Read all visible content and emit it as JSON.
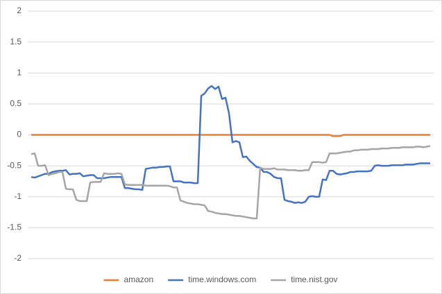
{
  "chart_data": {
    "type": "line",
    "ylim": [
      -2,
      2
    ],
    "yticks": [
      2,
      1.5,
      1,
      0.5,
      0,
      -0.5,
      -1,
      -1.5,
      -2
    ],
    "grid": true,
    "legend": "bottom",
    "series": [
      {
        "name": "amazon",
        "color": "#ed7d31",
        "values": [
          0,
          0,
          0,
          0,
          0,
          0,
          0,
          0,
          0,
          0,
          0,
          0,
          0,
          0,
          0,
          0,
          0,
          0,
          0,
          0,
          0,
          0,
          0,
          0,
          0,
          0,
          0,
          0,
          0,
          0,
          0,
          0,
          0,
          0,
          0,
          0,
          0,
          0,
          0,
          0,
          0,
          0,
          0,
          0,
          0,
          0,
          0,
          0,
          0,
          0,
          0,
          0,
          0,
          0,
          0,
          0,
          0,
          0,
          0,
          0,
          0,
          0,
          0,
          0,
          0,
          0,
          0,
          0,
          0,
          0,
          0,
          0,
          0,
          0,
          0,
          0,
          0,
          0,
          0,
          0,
          0,
          0,
          0,
          0,
          0,
          0,
          0,
          -0.02,
          -0.02,
          -0.02,
          0,
          0,
          0,
          0,
          0,
          0,
          0,
          0,
          0,
          0,
          0,
          0,
          0,
          0,
          0,
          0,
          0,
          0,
          0,
          0,
          0,
          0,
          0,
          0,
          0,
          0
        ]
      },
      {
        "name": "time.windows.com",
        "color": "#4472c4",
        "values": [
          -0.68,
          -0.69,
          -0.67,
          -0.65,
          -0.63,
          -0.63,
          -0.6,
          -0.59,
          -0.58,
          -0.58,
          -0.57,
          -0.64,
          -0.63,
          -0.63,
          -0.62,
          -0.67,
          -0.66,
          -0.65,
          -0.65,
          -0.7,
          -0.7,
          -0.7,
          -0.69,
          -0.68,
          -0.68,
          -0.68,
          -0.68,
          -0.86,
          -0.86,
          -0.87,
          -0.88,
          -0.88,
          -0.89,
          -0.55,
          -0.54,
          -0.53,
          -0.53,
          -0.52,
          -0.52,
          -0.51,
          -0.51,
          -0.75,
          -0.75,
          -0.75,
          -0.77,
          -0.77,
          -0.77,
          -0.78,
          -0.78,
          0.63,
          0.67,
          0.75,
          0.79,
          0.74,
          0.78,
          0.58,
          0.6,
          0.35,
          -0.12,
          -0.1,
          -0.12,
          -0.36,
          -0.35,
          -0.42,
          -0.47,
          -0.52,
          -0.53,
          -0.6,
          -0.6,
          -0.63,
          -0.68,
          -0.7,
          -0.7,
          -1.05,
          -1.07,
          -1.08,
          -1.1,
          -1.09,
          -1.1,
          -1.08,
          -1.0,
          -0.99,
          -1.0,
          -1.0,
          -0.72,
          -0.73,
          -0.58,
          -0.58,
          -0.63,
          -0.64,
          -0.63,
          -0.62,
          -0.6,
          -0.6,
          -0.59,
          -0.59,
          -0.59,
          -0.59,
          -0.58,
          -0.5,
          -0.49,
          -0.5,
          -0.5,
          -0.5,
          -0.49,
          -0.49,
          -0.49,
          -0.49,
          -0.48,
          -0.48,
          -0.48,
          -0.47,
          -0.46,
          -0.46,
          -0.46,
          -0.46
        ]
      },
      {
        "name": "time.nist.gov",
        "color": "#a5a5a5",
        "values": [
          -0.31,
          -0.3,
          -0.5,
          -0.5,
          -0.49,
          -0.65,
          -0.63,
          -0.62,
          -0.6,
          -0.6,
          -0.87,
          -0.88,
          -0.88,
          -1.05,
          -1.07,
          -1.07,
          -1.07,
          -0.77,
          -0.76,
          -0.76,
          -0.76,
          -0.62,
          -0.63,
          -0.63,
          -0.63,
          -0.62,
          -0.63,
          -0.8,
          -0.81,
          -0.81,
          -0.81,
          -0.81,
          -0.81,
          -0.82,
          -0.82,
          -0.82,
          -0.82,
          -0.82,
          -0.82,
          -0.82,
          -0.83,
          -0.85,
          -0.85,
          -1.06,
          -1.08,
          -1.1,
          -1.11,
          -1.12,
          -1.12,
          -1.13,
          -1.14,
          -1.23,
          -1.24,
          -1.26,
          -1.27,
          -1.28,
          -1.28,
          -1.29,
          -1.3,
          -1.31,
          -1.31,
          -1.32,
          -1.33,
          -1.34,
          -1.35,
          -1.35,
          -0.53,
          -0.55,
          -0.55,
          -0.55,
          -0.54,
          -0.56,
          -0.56,
          -0.56,
          -0.57,
          -0.57,
          -0.57,
          -0.58,
          -0.58,
          -0.57,
          -0.57,
          -0.44,
          -0.44,
          -0.44,
          -0.45,
          -0.44,
          -0.3,
          -0.3,
          -0.3,
          -0.29,
          -0.28,
          -0.27,
          -0.27,
          -0.25,
          -0.25,
          -0.24,
          -0.24,
          -0.24,
          -0.23,
          -0.23,
          -0.23,
          -0.22,
          -0.22,
          -0.22,
          -0.21,
          -0.21,
          -0.21,
          -0.2,
          -0.2,
          -0.2,
          -0.2,
          -0.19,
          -0.19,
          -0.2,
          -0.19,
          -0.18
        ]
      }
    ]
  }
}
